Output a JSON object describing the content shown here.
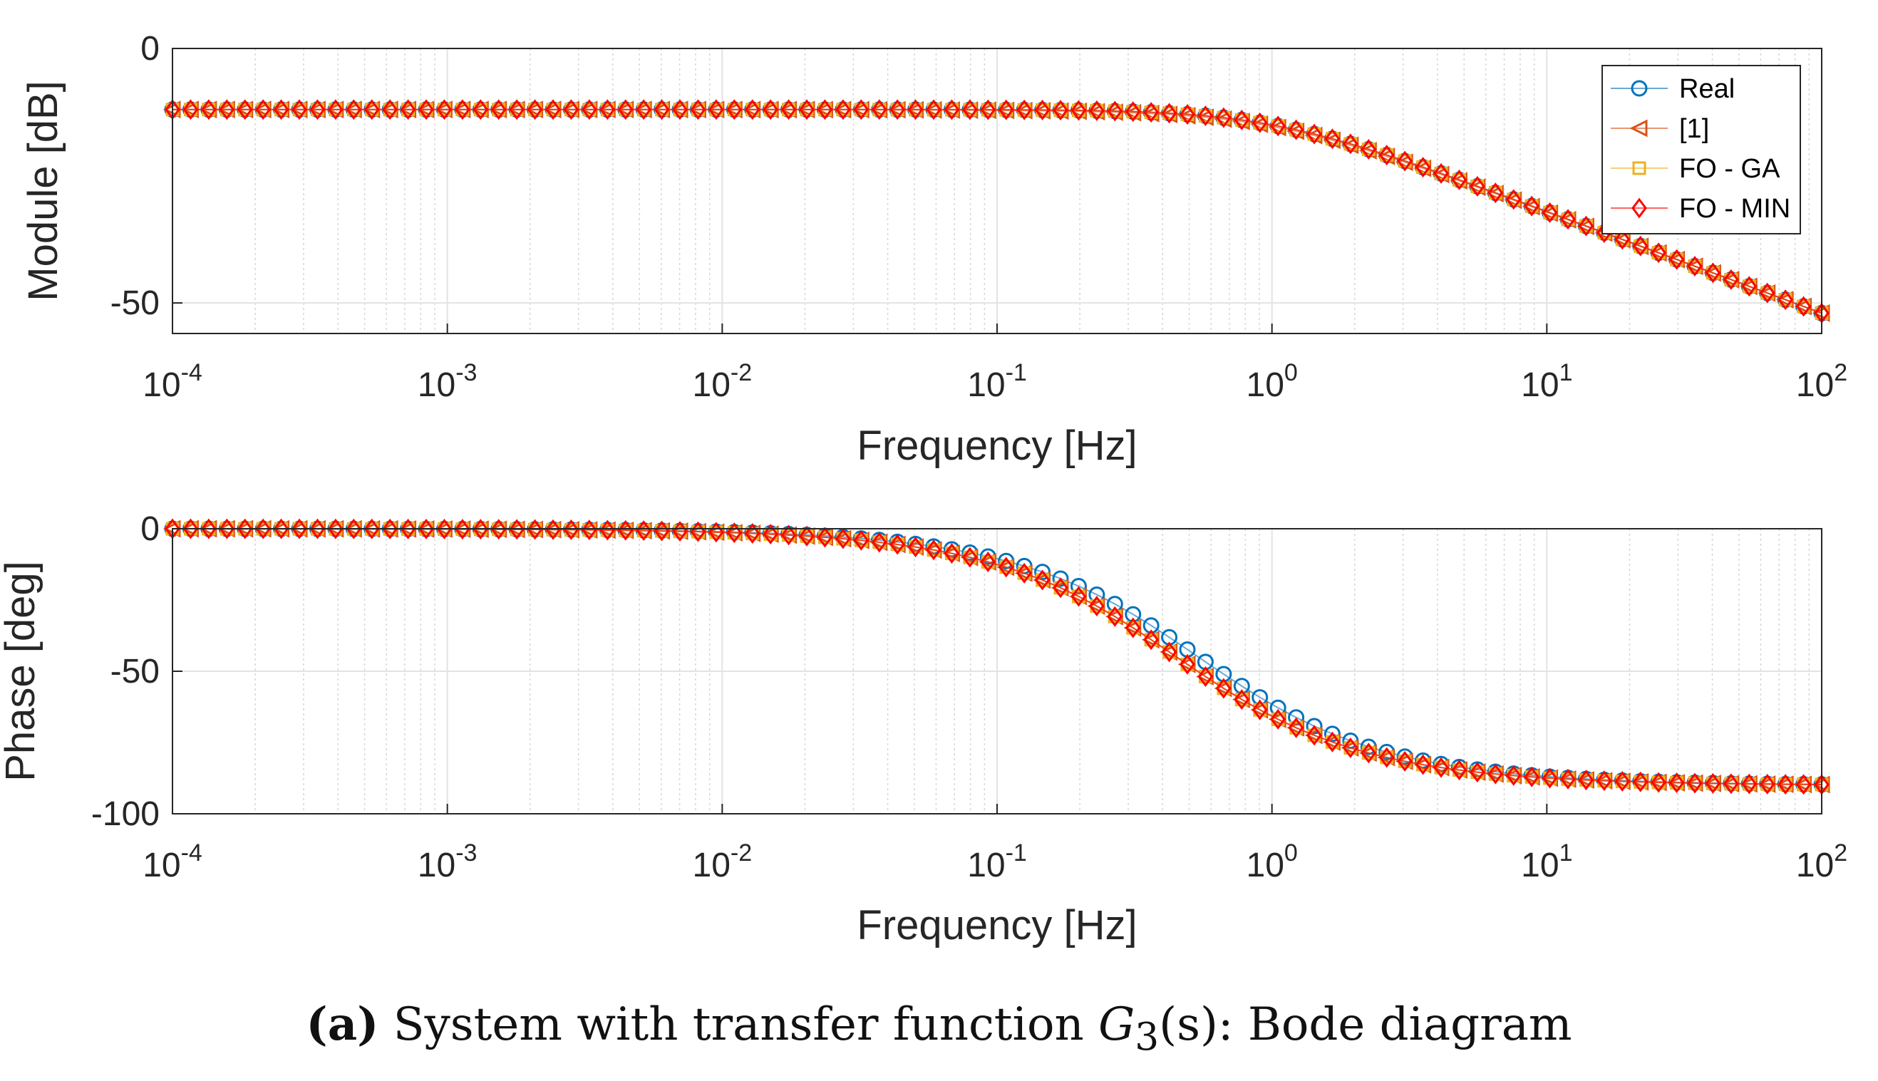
{
  "chart_data": [
    {
      "type": "line",
      "panel": "magnitude",
      "xlabel": "Frequency [Hz]",
      "ylabel": "Module [dB]",
      "xscale": "log",
      "xlim": [
        0.0001,
        100
      ],
      "ylim": [
        -56,
        0
      ],
      "yticks": [
        0,
        -50
      ],
      "ytick_labels": [
        "0",
        "-50"
      ],
      "xtick_labels": [
        {
          "base": "10",
          "exp": "-4"
        },
        {
          "base": "10",
          "exp": "-3"
        },
        {
          "base": "10",
          "exp": "-2"
        },
        {
          "base": "10",
          "exp": "-1"
        },
        {
          "base": "10",
          "exp": "0"
        },
        {
          "base": "10",
          "exp": "1"
        },
        {
          "base": "10",
          "exp": "2"
        }
      ],
      "grid": true,
      "legend_position": "top-right",
      "model": {
        "dc_gain_db": -12,
        "corner_hz": 1.0,
        "slope": -1
      },
      "series": [
        {
          "name": "Real",
          "marker": "circle",
          "color": "#0072BD"
        },
        {
          "name": "[1]",
          "marker": "triangle-left",
          "color": "#D95319"
        },
        {
          "name": "FO - GA",
          "marker": "square",
          "color": "#EDB120"
        },
        {
          "name": "FO - MIN",
          "marker": "diamond",
          "color": "#FF0000"
        }
      ]
    },
    {
      "type": "line",
      "panel": "phase",
      "xlabel": "Frequency [Hz]",
      "ylabel": "Phase [deg]",
      "xscale": "log",
      "xlim": [
        0.0001,
        100
      ],
      "ylim": [
        -100,
        0
      ],
      "yticks": [
        0,
        -50,
        -100
      ],
      "ytick_labels": [
        "0",
        "-50",
        "-100"
      ],
      "xtick_labels": [
        {
          "base": "10",
          "exp": "-4"
        },
        {
          "base": "10",
          "exp": "-3"
        },
        {
          "base": "10",
          "exp": "-2"
        },
        {
          "base": "10",
          "exp": "-1"
        },
        {
          "base": "10",
          "exp": "0"
        },
        {
          "base": "10",
          "exp": "1"
        },
        {
          "base": "10",
          "exp": "2"
        }
      ],
      "grid": true,
      "model": {
        "min_deg": -90,
        "corner_hz": 0.45,
        "real_lag_offset": 1.2
      },
      "series": [
        {
          "name": "Real",
          "marker": "circle",
          "color": "#0072BD"
        },
        {
          "name": "[1]",
          "marker": "triangle-left",
          "color": "#D95319"
        },
        {
          "name": "FO - GA",
          "marker": "square",
          "color": "#EDB120"
        },
        {
          "name": "FO - MIN",
          "marker": "diamond",
          "color": "#FF0000"
        }
      ]
    }
  ],
  "caption": {
    "label": "(a)",
    "text_before": " System with transfer function ",
    "symbol": "G",
    "subscript": "3",
    "arg": "(s)",
    "text_after": ": Bode diagram"
  }
}
